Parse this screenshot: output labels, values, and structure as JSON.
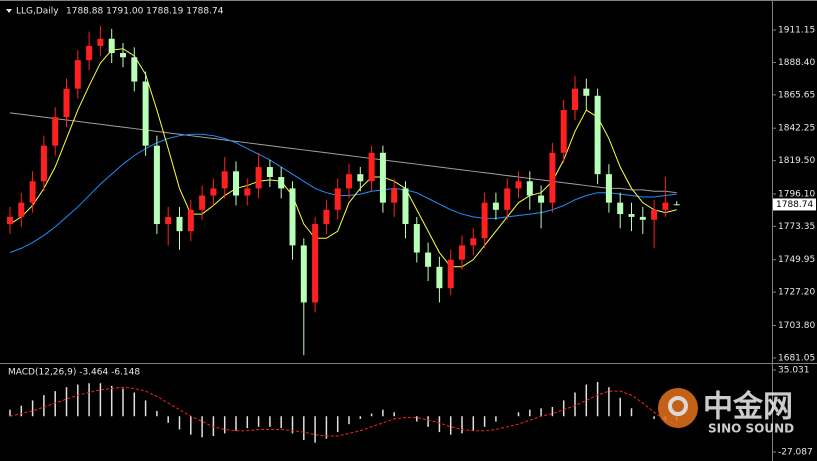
{
  "chart_data": [
    {
      "type": "candlestick",
      "title": "LLG,Daily",
      "subtitle": "1788.88 1791.00 1788.19 1788.74",
      "ylim": [
        1679.6,
        1928.7
      ],
      "yticks": [
        1911.15,
        {
          "value": 1888.4,
          "label": "1888.40"
        },
        1865.65,
        1842.25,
        {
          "value": 1819.5,
          "label": "1819.50"
        },
        {
          "value": 1796.1,
          "label": "1796.10"
        },
        1773.35,
        1749.95,
        {
          "value": 1727.2,
          "label": "1727.20"
        },
        {
          "value": 1703.8,
          "label": "1703.80"
        },
        1681.05
      ],
      "last_price": 1788.74,
      "up_color": "#ff2020",
      "down_color": "#b8ffb8",
      "open": [
        1775,
        1780,
        1790,
        1805,
        1830,
        1850,
        1870,
        1890,
        1900,
        1905,
        1895,
        1892,
        1875,
        1830,
        1775,
        1780,
        1770,
        1785,
        1795,
        1800,
        1812,
        1795,
        1800,
        1815,
        1808,
        1800,
        1760,
        1720,
        1775,
        1785,
        1800,
        1810,
        1805,
        1825,
        1790,
        1800,
        1775,
        1755,
        1745,
        1730,
        1750,
        1760,
        1765,
        1790,
        1785,
        1800,
        1805,
        1795,
        1790,
        1825,
        1855,
        1870,
        1865,
        1810,
        1790,
        1782,
        1780,
        1778,
        1785,
        1788.88
      ],
      "high": [
        1787,
        1797,
        1812,
        1837,
        1857,
        1877,
        1897,
        1910,
        1914,
        1912,
        1902,
        1899,
        1882,
        1837,
        1787,
        1787,
        1792,
        1802,
        1807,
        1822,
        1819,
        1807,
        1825,
        1820,
        1815,
        1805,
        1765,
        1780,
        1792,
        1807,
        1817,
        1815,
        1830,
        1830,
        1807,
        1805,
        1780,
        1762,
        1752,
        1757,
        1767,
        1772,
        1797,
        1797,
        1807,
        1812,
        1812,
        1802,
        1832,
        1862,
        1879,
        1877,
        1870,
        1817,
        1797,
        1790,
        1787,
        1792,
        1808,
        1791
      ],
      "low": [
        1768,
        1773,
        1783,
        1798,
        1823,
        1843,
        1863,
        1883,
        1893,
        1888,
        1885,
        1868,
        1823,
        1768,
        1760,
        1757,
        1763,
        1778,
        1788,
        1793,
        1788,
        1788,
        1793,
        1801,
        1793,
        1750,
        1683,
        1713,
        1768,
        1778,
        1793,
        1798,
        1798,
        1783,
        1780,
        1765,
        1748,
        1735,
        1720,
        1725,
        1743,
        1753,
        1758,
        1778,
        1778,
        1793,
        1785,
        1772,
        1783,
        1818,
        1848,
        1855,
        1803,
        1783,
        1772,
        1770,
        1768,
        1758,
        1780,
        1788.19
      ],
      "close": [
        1780,
        1790,
        1805,
        1830,
        1850,
        1870,
        1890,
        1900,
        1905,
        1895,
        1892,
        1875,
        1830,
        1775,
        1780,
        1770,
        1785,
        1795,
        1800,
        1812,
        1795,
        1800,
        1815,
        1808,
        1800,
        1760,
        1720,
        1775,
        1785,
        1800,
        1810,
        1805,
        1825,
        1790,
        1800,
        1775,
        1755,
        1745,
        1730,
        1750,
        1760,
        1765,
        1790,
        1785,
        1800,
        1805,
        1795,
        1790,
        1825,
        1855,
        1870,
        1865,
        1810,
        1790,
        1782,
        1780,
        1778,
        1785,
        1790,
        1788.74
      ],
      "series": [
        {
          "color": "#a0a0a0",
          "values": [
            1853,
            1852,
            1851,
            1850,
            1849,
            1848,
            1847,
            1846,
            1845,
            1844,
            1843,
            1842,
            1841,
            1840,
            1839,
            1838,
            1837,
            1836,
            1835,
            1834,
            1833,
            1832,
            1831,
            1830,
            1829,
            1828,
            1827,
            1826,
            1825,
            1824,
            1823,
            1822,
            1821,
            1820,
            1819,
            1818,
            1817,
            1816,
            1815,
            1814,
            1813,
            1812,
            1811,
            1810,
            1809,
            1808,
            1807,
            1806,
            1805,
            1804,
            1803,
            1802,
            1801,
            1800,
            1800,
            1799,
            1799,
            1798,
            1798,
            1797
          ]
        },
        {
          "color": "#1e90ff",
          "values": [
            1755,
            1758,
            1762,
            1767,
            1773,
            1780,
            1787,
            1795,
            1803,
            1810,
            1817,
            1823,
            1828,
            1832,
            1835,
            1837,
            1838,
            1838,
            1837,
            1835,
            1832,
            1828,
            1824,
            1820,
            1815,
            1810,
            1805,
            1800,
            1797,
            1795,
            1795,
            1796,
            1798,
            1799,
            1800,
            1799,
            1797,
            1793,
            1789,
            1785,
            1782,
            1780,
            1779,
            1779,
            1780,
            1781,
            1782,
            1783,
            1785,
            1788,
            1792,
            1795,
            1797,
            1797,
            1796,
            1795,
            1794,
            1794,
            1795,
            1796
          ]
        },
        {
          "color": "#ffff40",
          "values": [
            1775,
            1780,
            1788,
            1800,
            1815,
            1835,
            1855,
            1872,
            1888,
            1897,
            1898,
            1893,
            1880,
            1855,
            1828,
            1800,
            1782,
            1782,
            1788,
            1795,
            1800,
            1802,
            1805,
            1806,
            1805,
            1795,
            1775,
            1765,
            1765,
            1770,
            1790,
            1800,
            1808,
            1808,
            1805,
            1800,
            1785,
            1770,
            1755,
            1745,
            1745,
            1750,
            1760,
            1770,
            1780,
            1790,
            1795,
            1797,
            1805,
            1820,
            1840,
            1855,
            1850,
            1835,
            1815,
            1800,
            1790,
            1785,
            1783,
            1785
          ]
        }
      ]
    },
    {
      "type": "macd",
      "title": "MACD(12,26,9) -3.464 -6.148",
      "ylim": [
        -27.087,
        35.031
      ],
      "yticks": [
        35.031,
        -27.087
      ],
      "series": [
        {
          "style": "bar",
          "color": "#e0e0e0",
          "values": [
            5,
            8,
            12,
            16,
            19,
            22,
            24,
            25,
            25,
            23,
            21,
            18,
            12,
            4,
            -5,
            -10,
            -14,
            -16,
            -15,
            -13,
            -11,
            -9,
            -8,
            -8,
            -9,
            -13,
            -18,
            -20,
            -17,
            -12,
            -6,
            -2,
            2,
            5,
            3,
            0,
            -4,
            -8,
            -12,
            -14,
            -13,
            -11,
            -8,
            -4,
            0,
            3,
            5,
            6,
            7,
            12,
            18,
            24,
            26,
            22,
            14,
            6,
            0,
            -2,
            -3,
            -3.464
          ]
        },
        {
          "style": "dashed",
          "color": "#ff2020",
          "values": [
            0,
            2,
            4,
            7,
            10,
            13,
            16,
            18,
            20,
            21,
            22,
            21,
            19,
            15,
            10,
            5,
            0,
            -4,
            -8,
            -10,
            -11,
            -11,
            -10,
            -10,
            -10,
            -11,
            -12,
            -14,
            -15,
            -15,
            -13,
            -11,
            -8,
            -5,
            -2,
            -1,
            -1,
            -3,
            -5,
            -8,
            -10,
            -11,
            -11,
            -10,
            -8,
            -6,
            -3,
            0,
            2,
            5,
            8,
            12,
            16,
            19,
            19,
            16,
            10,
            3,
            -3,
            -6.148
          ]
        }
      ]
    }
  ],
  "watermark": {
    "brand": "中金网",
    "english": "SINO SOUND"
  }
}
